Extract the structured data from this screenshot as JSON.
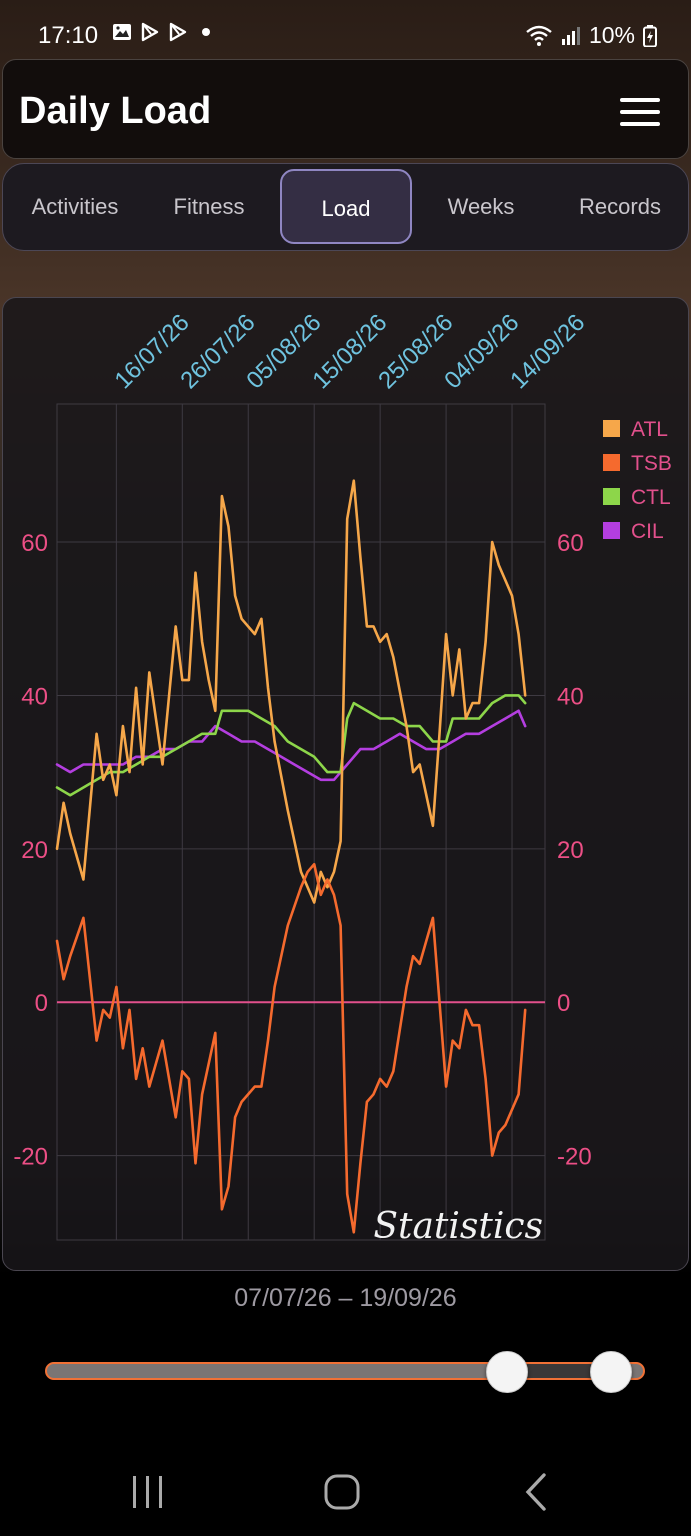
{
  "status_bar": {
    "time": "17:10",
    "battery": "10%",
    "left_icons": [
      "gallery-icon",
      "play-store-icon",
      "play-store-icon",
      "dot-icon"
    ],
    "right_icons": [
      "wifi-icon",
      "signal-icon",
      "battery-charging-icon"
    ]
  },
  "header": {
    "title": "Daily Load"
  },
  "tabs": [
    {
      "label": "Activities",
      "active": false
    },
    {
      "label": "Fitness",
      "active": false
    },
    {
      "label": "Load",
      "active": true
    },
    {
      "label": "Weeks",
      "active": false
    },
    {
      "label": "Records",
      "active": false
    }
  ],
  "chart_data": {
    "type": "line",
    "x_tick_labels": [
      "16/07/26",
      "26/07/26",
      "05/08/26",
      "15/08/26",
      "25/08/26",
      "04/09/26",
      "14/09/26"
    ],
    "x_tick_days": [
      9,
      19,
      29,
      39,
      49,
      59,
      69
    ],
    "x_range_days": [
      0,
      74
    ],
    "y_ticks": [
      60,
      40,
      20,
      0,
      -20
    ],
    "ylim": [
      -31,
      78
    ],
    "grid": true,
    "legend_position": "top-right",
    "watermark": "Statistics",
    "series": [
      {
        "name": "ATL",
        "color": "#f6a74a",
        "points": [
          [
            0,
            20
          ],
          [
            1,
            26
          ],
          [
            2,
            22
          ],
          [
            4,
            16
          ],
          [
            6,
            35
          ],
          [
            7,
            29
          ],
          [
            8,
            31
          ],
          [
            9,
            27
          ],
          [
            10,
            36
          ],
          [
            11,
            30
          ],
          [
            12,
            41
          ],
          [
            13,
            31
          ],
          [
            14,
            43
          ],
          [
            16,
            31
          ],
          [
            18,
            49
          ],
          [
            19,
            42
          ],
          [
            20,
            42
          ],
          [
            21,
            56
          ],
          [
            22,
            47
          ],
          [
            23,
            42
          ],
          [
            24,
            38
          ],
          [
            25,
            66
          ],
          [
            26,
            62
          ],
          [
            27,
            53
          ],
          [
            28,
            50
          ],
          [
            30,
            48
          ],
          [
            31,
            50
          ],
          [
            32,
            41
          ],
          [
            33,
            34
          ],
          [
            35,
            25
          ],
          [
            37,
            17
          ],
          [
            38,
            15
          ],
          [
            39,
            13
          ],
          [
            40,
            17
          ],
          [
            41,
            15
          ],
          [
            42,
            17
          ],
          [
            43,
            21
          ],
          [
            44,
            63
          ],
          [
            45,
            68
          ],
          [
            46,
            58
          ],
          [
            47,
            49
          ],
          [
            48,
            49
          ],
          [
            49,
            47
          ],
          [
            50,
            48
          ],
          [
            51,
            45
          ],
          [
            53,
            36
          ],
          [
            54,
            30
          ],
          [
            55,
            31
          ],
          [
            57,
            23
          ],
          [
            58,
            35
          ],
          [
            59,
            48
          ],
          [
            60,
            40
          ],
          [
            61,
            46
          ],
          [
            62,
            37
          ],
          [
            63,
            39
          ],
          [
            64,
            39
          ],
          [
            65,
            47
          ],
          [
            66,
            60
          ],
          [
            67,
            57
          ],
          [
            68,
            55
          ],
          [
            69,
            53
          ],
          [
            70,
            48
          ],
          [
            71,
            40
          ]
        ]
      },
      {
        "name": "TSB",
        "color": "#f56a2e",
        "points": [
          [
            0,
            8
          ],
          [
            1,
            3
          ],
          [
            2,
            6
          ],
          [
            4,
            11
          ],
          [
            6,
            -5
          ],
          [
            7,
            -1
          ],
          [
            8,
            -2
          ],
          [
            9,
            2
          ],
          [
            10,
            -6
          ],
          [
            11,
            -1
          ],
          [
            12,
            -10
          ],
          [
            13,
            -6
          ],
          [
            14,
            -11
          ],
          [
            16,
            -5
          ],
          [
            18,
            -15
          ],
          [
            19,
            -9
          ],
          [
            20,
            -10
          ],
          [
            21,
            -21
          ],
          [
            22,
            -12
          ],
          [
            23,
            -8
          ],
          [
            24,
            -4
          ],
          [
            25,
            -27
          ],
          [
            26,
            -24
          ],
          [
            27,
            -15
          ],
          [
            28,
            -13
          ],
          [
            30,
            -11
          ],
          [
            31,
            -11
          ],
          [
            32,
            -5
          ],
          [
            33,
            2
          ],
          [
            35,
            10
          ],
          [
            37,
            15
          ],
          [
            38,
            17
          ],
          [
            39,
            18
          ],
          [
            40,
            14
          ],
          [
            41,
            16
          ],
          [
            42,
            14
          ],
          [
            43,
            10
          ],
          [
            44,
            -25
          ],
          [
            45,
            -30
          ],
          [
            46,
            -21
          ],
          [
            47,
            -13
          ],
          [
            48,
            -12
          ],
          [
            49,
            -10
          ],
          [
            50,
            -11
          ],
          [
            51,
            -9
          ],
          [
            53,
            2
          ],
          [
            54,
            6
          ],
          [
            55,
            5
          ],
          [
            57,
            11
          ],
          [
            58,
            0
          ],
          [
            59,
            -11
          ],
          [
            60,
            -5
          ],
          [
            61,
            -6
          ],
          [
            62,
            -1
          ],
          [
            63,
            -3
          ],
          [
            64,
            -3
          ],
          [
            65,
            -10
          ],
          [
            66,
            -20
          ],
          [
            67,
            -17
          ],
          [
            68,
            -16
          ],
          [
            69,
            -14
          ],
          [
            70,
            -12
          ],
          [
            71,
            -1
          ]
        ]
      },
      {
        "name": "CTL",
        "color": "#8dd64a",
        "points": [
          [
            0,
            28
          ],
          [
            2,
            27
          ],
          [
            4,
            28
          ],
          [
            6,
            29
          ],
          [
            8,
            30
          ],
          [
            10,
            30
          ],
          [
            12,
            31
          ],
          [
            14,
            32
          ],
          [
            16,
            32
          ],
          [
            18,
            33
          ],
          [
            20,
            34
          ],
          [
            22,
            35
          ],
          [
            24,
            35
          ],
          [
            25,
            38
          ],
          [
            27,
            38
          ],
          [
            29,
            38
          ],
          [
            31,
            37
          ],
          [
            33,
            36
          ],
          [
            35,
            34
          ],
          [
            37,
            33
          ],
          [
            39,
            32
          ],
          [
            41,
            30
          ],
          [
            43,
            30
          ],
          [
            44,
            37
          ],
          [
            45,
            39
          ],
          [
            47,
            38
          ],
          [
            49,
            37
          ],
          [
            51,
            37
          ],
          [
            53,
            36
          ],
          [
            55,
            36
          ],
          [
            57,
            34
          ],
          [
            59,
            34
          ],
          [
            60,
            37
          ],
          [
            62,
            37
          ],
          [
            64,
            37
          ],
          [
            66,
            39
          ],
          [
            68,
            40
          ],
          [
            70,
            40
          ],
          [
            71,
            39
          ]
        ]
      },
      {
        "name": "CIL",
        "color": "#b43ee0",
        "points": [
          [
            0,
            31
          ],
          [
            2,
            30
          ],
          [
            4,
            31
          ],
          [
            6,
            31
          ],
          [
            8,
            31
          ],
          [
            10,
            31
          ],
          [
            12,
            32
          ],
          [
            14,
            32
          ],
          [
            16,
            33
          ],
          [
            18,
            33
          ],
          [
            20,
            34
          ],
          [
            22,
            34
          ],
          [
            24,
            36
          ],
          [
            26,
            35
          ],
          [
            28,
            34
          ],
          [
            30,
            34
          ],
          [
            32,
            33
          ],
          [
            34,
            32
          ],
          [
            36,
            31
          ],
          [
            38,
            30
          ],
          [
            40,
            29
          ],
          [
            42,
            29
          ],
          [
            44,
            31
          ],
          [
            46,
            33
          ],
          [
            48,
            33
          ],
          [
            50,
            34
          ],
          [
            52,
            35
          ],
          [
            54,
            34
          ],
          [
            56,
            33
          ],
          [
            58,
            33
          ],
          [
            60,
            34
          ],
          [
            62,
            35
          ],
          [
            64,
            35
          ],
          [
            66,
            36
          ],
          [
            68,
            37
          ],
          [
            70,
            38
          ],
          [
            71,
            36
          ]
        ]
      }
    ]
  },
  "date_range": "07/07/26 – 19/09/26",
  "slider": {
    "start_fraction": 0.787,
    "end_fraction": 1.0
  },
  "nav": {
    "icons": [
      "recent-apps-icon",
      "home-icon",
      "back-icon"
    ]
  }
}
